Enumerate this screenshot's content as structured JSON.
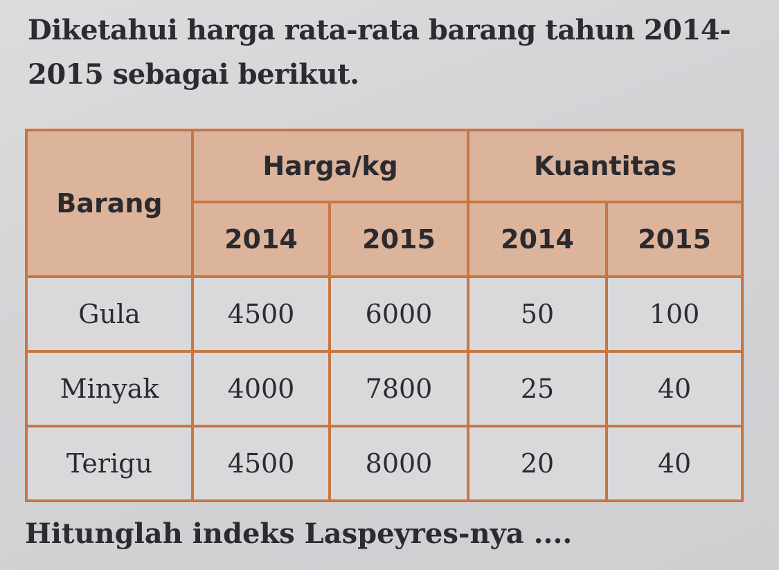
{
  "question": {
    "intro_line1": "Diketahui harga rata-rata barang tahun 2014-",
    "intro_line2": "2015 sebagai berikut.",
    "prompt": "Hitunglah indeks Laspeyres-nya ...."
  },
  "table": {
    "header_item": "Barang",
    "header_price": "Harga/kg",
    "header_quantity": "Kuantitas",
    "years": [
      "2014",
      "2015",
      "2014",
      "2015"
    ],
    "rows": [
      {
        "item": "Gula",
        "price_2014": "4500",
        "price_2015": "6000",
        "qty_2014": "50",
        "qty_2015": "100"
      },
      {
        "item": "Minyak",
        "price_2014": "4000",
        "price_2015": "7800",
        "qty_2014": "25",
        "qty_2015": "40"
      },
      {
        "item": "Terigu",
        "price_2014": "4500",
        "price_2015": "8000",
        "qty_2014": "20",
        "qty_2015": "40"
      }
    ]
  },
  "colors": {
    "header_fill": "#dcb49c",
    "border": "#c87642",
    "cell_fill": "#d9d9dc"
  }
}
